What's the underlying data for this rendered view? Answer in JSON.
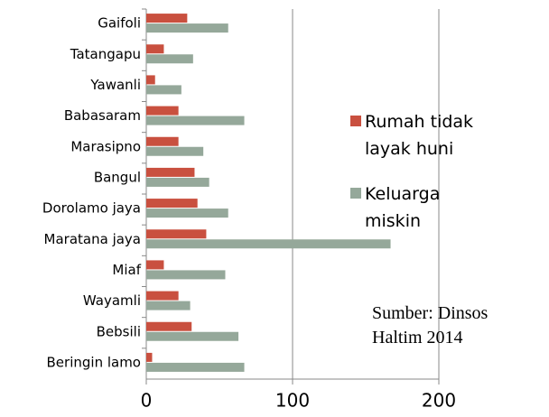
{
  "chart_data": {
    "type": "hbar",
    "categories": [
      "Gaifoli",
      "Tatangapu",
      "Yawanli",
      "Babasaram",
      "Marasipno",
      "Bangul",
      "Dorolamo jaya",
      "Maratana jaya",
      "Miaf",
      "Wayamli",
      "Bebsili",
      "Beringin lamo"
    ],
    "series": [
      {
        "name": "Rumah tidak layak huni",
        "color": "#c9503f",
        "values": [
          28,
          12,
          6,
          22,
          22,
          33,
          35,
          41,
          12,
          22,
          31,
          4
        ]
      },
      {
        "name": "Keluarga miskin",
        "color": "#95a89a",
        "values": [
          56,
          32,
          24,
          67,
          39,
          43,
          56,
          167,
          54,
          30,
          63,
          67
        ]
      }
    ],
    "xlim": [
      0,
      200
    ],
    "xticks": [
      0,
      100,
      200
    ],
    "grid": true,
    "annotation": "Sumber: Dinsos Haltim 2014"
  }
}
